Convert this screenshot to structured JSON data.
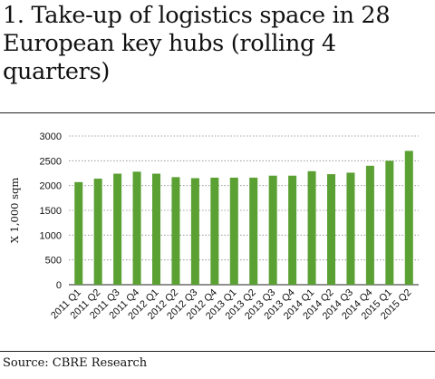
{
  "title": "1. Take-up of logistics space in 28 European key hubs (rolling 4 quarters)",
  "source": "Source: CBRE Research",
  "chart_data": {
    "type": "bar",
    "title": "1. Take-up of logistics space in 28 European key hubs (rolling 4 quarters)",
    "ylabel": "X 1,000 sqm",
    "xlabel": "",
    "ylim": [
      0,
      3000
    ],
    "yticks": [
      0,
      500,
      1000,
      1500,
      2000,
      2500,
      3000
    ],
    "grid": true,
    "bar_color": "#5aa032",
    "categories": [
      "2011 Q1",
      "2011 Q2",
      "2011 Q3",
      "2011 Q4",
      "2012 Q1",
      "2012 Q2",
      "2012 Q3",
      "2012 Q4",
      "2013 Q1",
      "2013 Q2",
      "2013 Q3",
      "2013 Q4",
      "2014 Q1",
      "2014 Q2",
      "2014 Q3",
      "2014 Q4",
      "2015 Q1",
      "2015 Q2"
    ],
    "values": [
      2070,
      2140,
      2240,
      2280,
      2240,
      2170,
      2150,
      2160,
      2160,
      2160,
      2200,
      2200,
      2290,
      2230,
      2260,
      2400,
      2500,
      2700
    ]
  }
}
